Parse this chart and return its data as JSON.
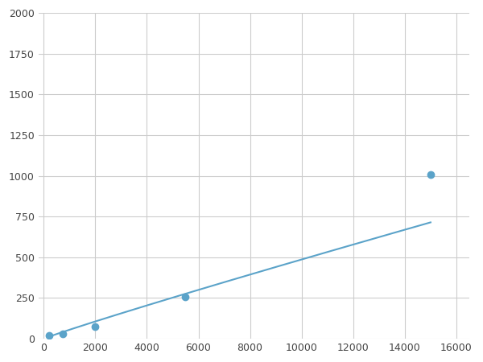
{
  "x_data": [
    200,
    750,
    2000,
    5500,
    15000
  ],
  "y_data": [
    18,
    30,
    75,
    255,
    1010
  ],
  "line_color": "#5ba3c9",
  "marker_color": "#5ba3c9",
  "marker_size": 6,
  "line_width": 1.5,
  "xlim": [
    -200,
    16500
  ],
  "ylim": [
    0,
    2000
  ],
  "xticks": [
    0,
    2000,
    4000,
    6000,
    8000,
    10000,
    12000,
    14000,
    16000
  ],
  "yticks": [
    0,
    250,
    500,
    750,
    1000,
    1250,
    1500,
    1750,
    2000
  ],
  "grid_color": "#cccccc",
  "background_color": "#ffffff",
  "figure_bg": "#ffffff"
}
